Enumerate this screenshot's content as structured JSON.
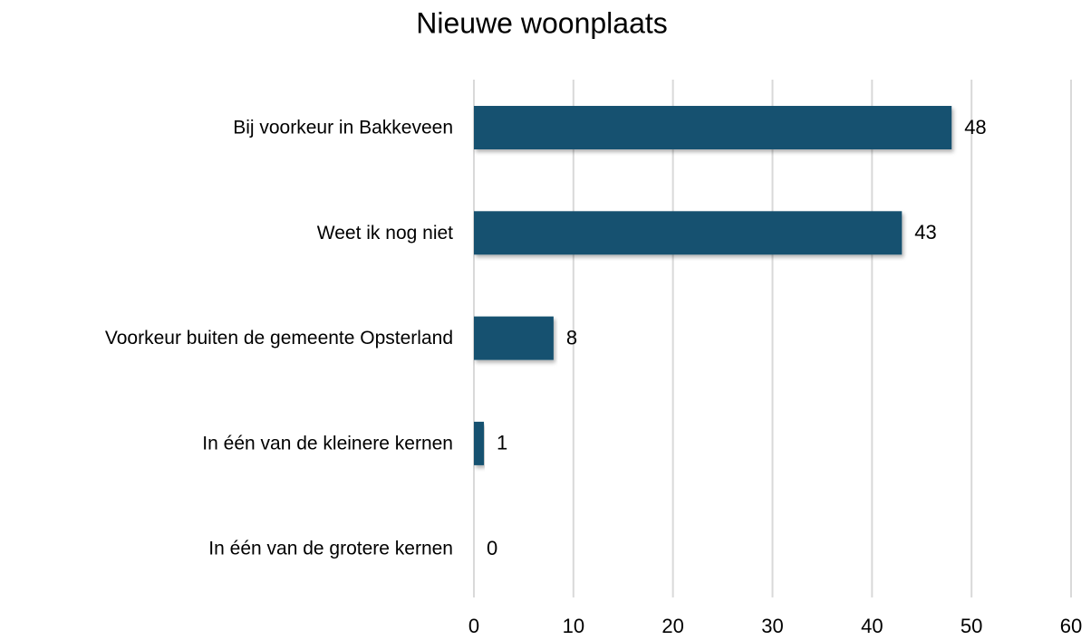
{
  "chart_data": {
    "type": "bar",
    "orientation": "horizontal",
    "title": "Nieuwe woonplaats",
    "categories": [
      "Bij voorkeur in Bakkeveen",
      "Weet ik nog niet",
      "Voorkeur buiten de gemeente Opsterland",
      "In één van de kleinere kernen",
      "In één van de grotere kernen"
    ],
    "values": [
      48,
      43,
      8,
      1,
      0
    ],
    "color": "#12516f",
    "xlim": [
      0,
      60
    ],
    "xticks": [
      0,
      10,
      20,
      30,
      40,
      50,
      60
    ],
    "grid": true
  }
}
